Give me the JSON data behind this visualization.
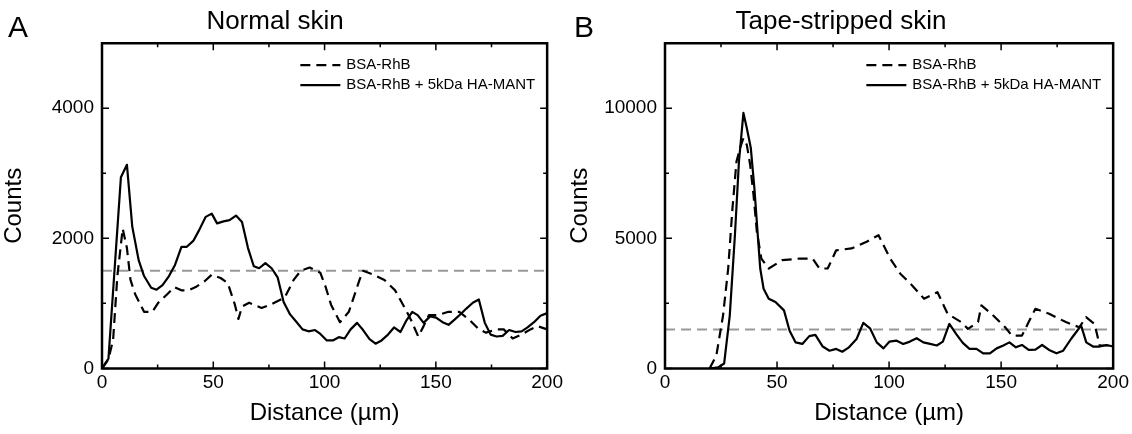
{
  "chart_data": [
    {
      "type": "line",
      "title": "Normal skin",
      "xlabel": "Distance (µm)",
      "ylabel": "Counts",
      "annotations": [
        "A"
      ],
      "legend": "top right",
      "marker": "none",
      "grid": false,
      "xlim": [
        0,
        200
      ],
      "xticks": [
        0,
        {
          "value": 25,
          "label": null
        },
        50,
        {
          "value": 75,
          "label": null
        },
        100,
        {
          "value": 125,
          "label": null
        },
        150,
        {
          "value": 175,
          "label": null
        },
        200
      ],
      "ylim": [
        0,
        5000
      ],
      "yticks": [
        0,
        {
          "value": 1000,
          "label": null
        },
        2000,
        {
          "value": 3000,
          "label": null
        },
        4000
      ],
      "ref_lines": [
        {
          "axis": "y",
          "value": 1500,
          "color": "#999999",
          "line_style": "dashed"
        }
      ],
      "series": [
        {
          "name": "BSA-RhB",
          "color": "#000000",
          "line_style": "dashed",
          "x": [
            0,
            2.9,
            5,
            6.9,
            9.3,
            11.2,
            12.8,
            14.9,
            17.3,
            18.9,
            22.6,
            25.3,
            29.3,
            32.5,
            35.7,
            38.9,
            42.1,
            46.1,
            49.3,
            53.3,
            56.5,
            59.7,
            61.3,
            62.9,
            66.1,
            71.7,
            75.7,
            82.1,
            86.1,
            89.3,
            93.3,
            98.1,
            100.5,
            102.9,
            106.9,
            110.9,
            115.7,
            117.3,
            122.1,
            126.9,
            131.7,
            136.5,
            138.9,
            142.1,
            144.5,
            146.9,
            150.9,
            155.7,
            160.5,
            165.3,
            169.3,
            172.5,
            177.3,
            180.5,
            184.5,
            188.5,
            192.5,
            195.7,
            200
          ],
          "values": [
            0,
            140,
            440,
            1420,
            2150,
            1850,
            1360,
            1140,
            980,
            870,
            870,
            1010,
            1140,
            1250,
            1200,
            1200,
            1250,
            1340,
            1440,
            1390,
            1310,
            980,
            760,
            950,
            1010,
            930,
            980,
            1090,
            1360,
            1500,
            1550,
            1470,
            1250,
            980,
            710,
            870,
            1360,
            1500,
            1440,
            1360,
            1200,
            900,
            740,
            490,
            650,
            820,
            820,
            870,
            870,
            740,
            600,
            550,
            600,
            600,
            460,
            520,
            600,
            650,
            600
          ]
        },
        {
          "name": "BSA-RhB + 5kDa HA-MANT",
          "color": "#000000",
          "line_style": "solid",
          "x": [
            0,
            2.9,
            8.5,
            11.2,
            13.6,
            16.5,
            18.9,
            22.1,
            24.5,
            27.2,
            30.1,
            32.8,
            35.7,
            38.1,
            41,
            43.7,
            46.6,
            49.3,
            51.7,
            54.6,
            57.3,
            60.2,
            62.9,
            65.6,
            68.2,
            70.6,
            73.4,
            76.2,
            78.9,
            81.6,
            84.5,
            87.2,
            90.1,
            92.8,
            95.7,
            98.1,
            101,
            103.7,
            106.4,
            109,
            111.7,
            114.6,
            117.3,
            120.2,
            122.9,
            125.6,
            128.5,
            131.2,
            134.1,
            136.8,
            139.4,
            141.8,
            144.5,
            147.4,
            150.1,
            153,
            155.7,
            158.4,
            161.3,
            163.7,
            166.6,
            169.3,
            172,
            174.6,
            177.3,
            180,
            182.9,
            185.8,
            188.5,
            191.2,
            194.1,
            197,
            200
          ],
          "values": [
            0,
            150,
            2940,
            3130,
            2180,
            1660,
            1420,
            1240,
            1210,
            1280,
            1420,
            1590,
            1870,
            1870,
            1960,
            2130,
            2330,
            2380,
            2230,
            2260,
            2280,
            2350,
            2250,
            1850,
            1570,
            1540,
            1620,
            1540,
            1400,
            1020,
            830,
            720,
            600,
            570,
            590,
            530,
            430,
            430,
            480,
            460,
            600,
            700,
            590,
            450,
            380,
            430,
            520,
            630,
            560,
            740,
            870,
            820,
            700,
            800,
            780,
            710,
            670,
            750,
            840,
            920,
            1010,
            1060,
            700,
            520,
            490,
            500,
            590,
            560,
            570,
            630,
            710,
            810,
            850
          ]
        }
      ]
    },
    {
      "type": "line",
      "title": "Tape-stripped skin",
      "xlabel": "Distance (µm)",
      "ylabel": "Counts",
      "annotations": [
        "B"
      ],
      "legend": "top right",
      "marker": "none",
      "grid": false,
      "xlim": [
        0,
        200
      ],
      "xticks": [
        0,
        {
          "value": 25,
          "label": null
        },
        50,
        {
          "value": 75,
          "label": null
        },
        100,
        {
          "value": 125,
          "label": null
        },
        150,
        {
          "value": 175,
          "label": null
        },
        200
      ],
      "ylim": [
        0,
        12500
      ],
      "yticks": [
        0,
        {
          "value": 2500,
          "label": null
        },
        5000,
        {
          "value": 7500,
          "label": null
        },
        10000
      ],
      "ref_lines": [
        {
          "axis": "y",
          "value": 1500,
          "color": "#999999",
          "line_style": "dashed"
        }
      ],
      "series": [
        {
          "name": "BSA-RhB",
          "color": "#000000",
          "line_style": "dashed",
          "x": [
            19.9,
            22.9,
            25.9,
            28.2,
            30.1,
            31.9,
            33.5,
            35,
            36.5,
            38,
            39.5,
            41,
            43,
            46.3,
            52.3,
            59.8,
            65.9,
            68.9,
            72.6,
            76.4,
            83.2,
            90,
            95.3,
            100.5,
            105,
            110.3,
            115.6,
            121.6,
            126.1,
            132.2,
            135.2,
            139.7,
            141.2,
            145.7,
            151.8,
            154.8,
            159.3,
            162.3,
            165.3,
            171.4,
            178.9,
            184.9,
            187.9,
            191.7,
            194,
            200
          ],
          "values": [
            0,
            490,
            2030,
            3840,
            6150,
            7950,
            8470,
            8850,
            8600,
            7830,
            6670,
            5250,
            4220,
            3840,
            4160,
            4220,
            4220,
            3840,
            3840,
            4540,
            4610,
            4870,
            5120,
            4220,
            3640,
            3190,
            2680,
            2930,
            2100,
            1780,
            1520,
            1780,
            2420,
            2100,
            1580,
            1260,
            1260,
            1780,
            2290,
            2100,
            1780,
            1580,
            1970,
            1710,
            880,
            880
          ]
        },
        {
          "name": "BSA-RhB + 5kDa HA-MANT",
          "color": "#000000",
          "line_style": "solid",
          "x": [
            20.6,
            23.7,
            26.4,
            28.9,
            31.2,
            33,
            35,
            36.5,
            38.3,
            39.9,
            41.4,
            42.5,
            44,
            46.3,
            49.3,
            53.1,
            55.6,
            58.3,
            61.3,
            64.4,
            67.1,
            70.4,
            73.4,
            76.4,
            79.1,
            82.1,
            85.5,
            88.5,
            91.5,
            94.5,
            97.5,
            100.2,
            103.2,
            106.3,
            109.3,
            112.3,
            115.3,
            118.3,
            121.3,
            124,
            126.9,
            129.9,
            132.9,
            135.9,
            139,
            142,
            145,
            148,
            151,
            153.7,
            156.6,
            159.3,
            162.3,
            165.3,
            168.3,
            171.4,
            174.7,
            177.7,
            181.2,
            185.7,
            188,
            191,
            194,
            197,
            200
          ],
          "values": [
            0,
            40,
            190,
            2030,
            5120,
            7950,
            9820,
            9240,
            8470,
            6920,
            5120,
            3840,
            3060,
            2680,
            2550,
            2230,
            1450,
            1000,
            940,
            1240,
            1290,
            840,
            680,
            750,
            640,
            810,
            1130,
            1750,
            1540,
            1000,
            770,
            1030,
            1070,
            940,
            1030,
            1160,
            1000,
            940,
            880,
            1030,
            1710,
            1330,
            980,
            750,
            750,
            580,
            580,
            770,
            880,
            1000,
            810,
            900,
            710,
            720,
            900,
            710,
            580,
            680,
            1130,
            1650,
            1000,
            840,
            840,
            900,
            840
          ]
        }
      ]
    }
  ]
}
